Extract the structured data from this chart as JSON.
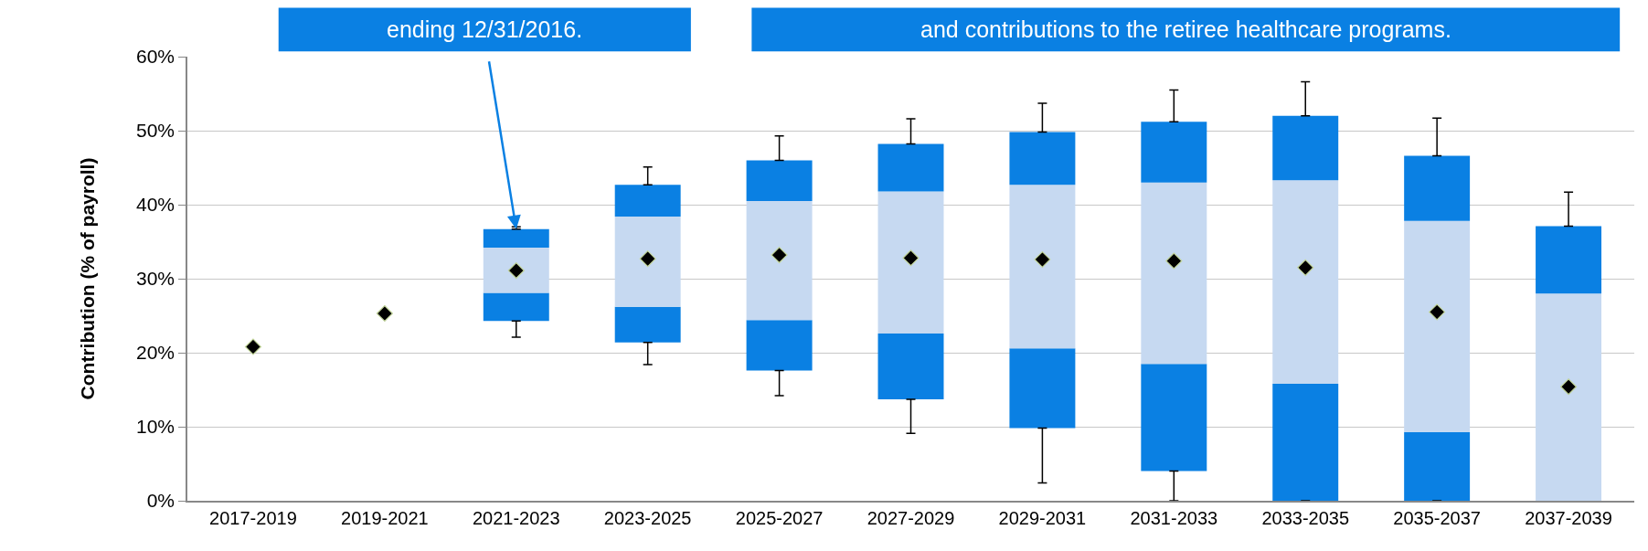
{
  "chart_data": {
    "type": "bar",
    "ylabel": "Contribution (% of payroll)",
    "categories": [
      "2017-2019",
      "2019-2021",
      "2021-2023",
      "2023-2025",
      "2025-2027",
      "2027-2029",
      "2029-2031",
      "2031-2033",
      "2033-2035",
      "2035-2037",
      "2037-2039"
    ],
    "series": [
      {
        "color": "#0a80e3",
        "base": [
          null,
          null,
          28.1,
          26.2,
          24.4,
          22.6,
          20.6,
          18.5,
          15.8,
          9.3,
          null
        ],
        "values": [
          null,
          null,
          -3.8,
          -4.8,
          -6.8,
          -8.9,
          -10.8,
          -14.5,
          -15.8,
          -9.3,
          null
        ],
        "errors": [
          null,
          null,
          [
            22.1,
            24.3
          ],
          [
            18.4,
            21.4
          ],
          [
            14.2,
            17.6
          ],
          [
            9.1,
            13.7
          ],
          [
            2.4,
            9.8
          ],
          [
            0,
            4.0
          ],
          null,
          null,
          null
        ]
      },
      {
        "color": "#c6d9f1",
        "base": [
          null,
          null,
          28.1,
          26.2,
          24.4,
          22.6,
          20.6,
          18.5,
          15.8,
          9.3,
          0
        ],
        "values": [
          null,
          null,
          6.1,
          12.2,
          16.1,
          19.2,
          22.1,
          24.5,
          27.5,
          28.5,
          28.0
        ]
      },
      {
        "color": "#0a80e3",
        "base": [
          null,
          null,
          34.2,
          38.4,
          40.5,
          41.8,
          42.7,
          43.0,
          43.3,
          37.8,
          28.0
        ],
        "values": [
          null,
          null,
          2.5,
          4.3,
          5.5,
          6.4,
          7.1,
          8.2,
          8.7,
          8.8,
          9.1
        ],
        "errors": [
          null,
          null,
          [
            36.7,
            37.0
          ],
          [
            42.7,
            45.1
          ],
          [
            46.0,
            49.3
          ],
          [
            48.2,
            51.6
          ],
          [
            49.8,
            53.7
          ],
          [
            51.2,
            55.5
          ],
          [
            52.0,
            56.6
          ],
          [
            46.6,
            51.7
          ],
          [
            37.1,
            41.7
          ]
        ]
      },
      {
        "type": "scatter",
        "color": "#000000",
        "marker": "diamond",
        "values": [
          20.8,
          25.3,
          31.1,
          32.7,
          33.2,
          32.8,
          32.6,
          32.4,
          31.5,
          25.5,
          15.4
        ]
      }
    ],
    "ylim": [
      0,
      60
    ],
    "yticks": [
      {
        "value": 0,
        "label": "0%"
      },
      {
        "value": 10,
        "label": "10%"
      },
      {
        "value": 20,
        "label": "20%"
      },
      {
        "value": 30,
        "label": "30%"
      },
      {
        "value": 40,
        "label": "40%"
      },
      {
        "value": 50,
        "label": "50%"
      },
      {
        "value": 60,
        "label": "60%"
      }
    ],
    "grid": "y",
    "annotations": [
      {
        "text": "ending 12/31/2016.",
        "x": "2021-2023",
        "y": 36.7
      },
      "and contributions to the retiree healthcare programs."
    ]
  }
}
